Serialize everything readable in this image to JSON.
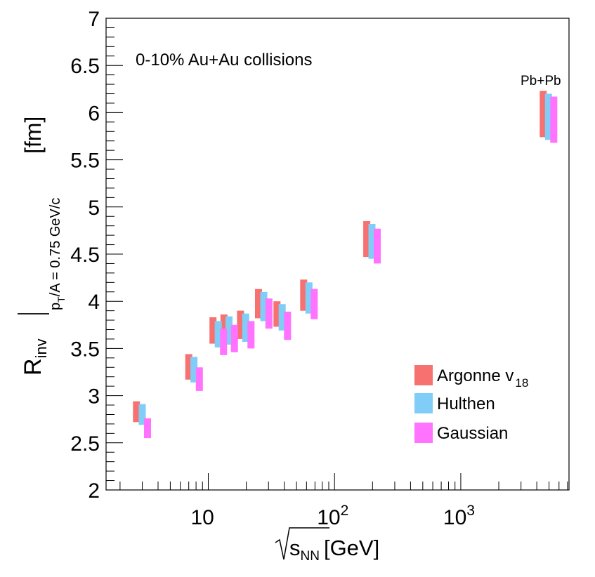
{
  "chart_data": {
    "type": "scatter",
    "annotation": "0-10% Au+Au collisions",
    "point_label": "Pb+Pb",
    "x_scale": "log",
    "xlim": [
      1.55,
      7200
    ],
    "ylim": [
      2,
      7
    ],
    "xlabel": {
      "sqrt": "s",
      "sub": "NN",
      "unit": "[GeV]"
    },
    "ylabel": {
      "main": "R",
      "sub": "inv",
      "cond": "p",
      "cond_sub": "T",
      "cond_rest": "/A = 0.75 GeV/c",
      "unit": "[fm]"
    },
    "x_ticks": [
      {
        "value": 10,
        "base": "10",
        "exp": ""
      },
      {
        "value": 100,
        "base": "10",
        "exp": "2"
      },
      {
        "value": 1000,
        "base": "10",
        "exp": "3"
      }
    ],
    "y_ticks": [
      {
        "value": 2,
        "label": "2"
      },
      {
        "value": 2.5,
        "label": "2.5"
      },
      {
        "value": 3,
        "label": "3"
      },
      {
        "value": 3.5,
        "label": "3.5"
      },
      {
        "value": 4,
        "label": "4"
      },
      {
        "value": 4.5,
        "label": "4.5"
      },
      {
        "value": 5,
        "label": "5"
      },
      {
        "value": 5.5,
        "label": "5.5"
      },
      {
        "value": 6,
        "label": "6"
      },
      {
        "value": 6.5,
        "label": "6.5"
      },
      {
        "value": 7,
        "label": "7"
      }
    ],
    "legend": {
      "position": "bottom-right",
      "entries": [
        {
          "label": "Argonne v",
          "sub": "18"
        },
        {
          "label": "Hulthen",
          "sub": ""
        },
        {
          "label": "Gaussian",
          "sub": ""
        }
      ]
    },
    "series": [
      {
        "name": "Argonne v18",
        "color": "#f87171",
        "bands": [
          {
            "x": 2.7,
            "low": 2.72,
            "high": 2.94
          },
          {
            "x": 7.0,
            "low": 3.17,
            "high": 3.44
          },
          {
            "x": 10.9,
            "low": 3.55,
            "high": 3.83
          },
          {
            "x": 13.3,
            "low": 3.58,
            "high": 3.86
          },
          {
            "x": 18.0,
            "low": 3.6,
            "high": 3.9
          },
          {
            "x": 25.0,
            "low": 3.82,
            "high": 4.13
          },
          {
            "x": 35.0,
            "low": 3.73,
            "high": 4.0
          },
          {
            "x": 57.0,
            "low": 3.9,
            "high": 4.23
          },
          {
            "x": 180.0,
            "low": 4.47,
            "high": 4.85
          },
          {
            "x": 4500.0,
            "low": 5.74,
            "high": 6.23
          }
        ]
      },
      {
        "name": "Hulthen",
        "color": "#80cef7",
        "bands": [
          {
            "x": 3.0,
            "low": 2.69,
            "high": 2.91
          },
          {
            "x": 7.7,
            "low": 3.14,
            "high": 3.41
          },
          {
            "x": 12.0,
            "low": 3.51,
            "high": 3.79
          },
          {
            "x": 14.6,
            "low": 3.54,
            "high": 3.84
          },
          {
            "x": 19.8,
            "low": 3.57,
            "high": 3.87
          },
          {
            "x": 27.5,
            "low": 3.79,
            "high": 4.1
          },
          {
            "x": 38.5,
            "low": 3.69,
            "high": 3.97
          },
          {
            "x": 62.7,
            "low": 3.87,
            "high": 4.2
          },
          {
            "x": 198.0,
            "low": 4.45,
            "high": 4.82
          },
          {
            "x": 4950.0,
            "low": 5.71,
            "high": 6.2
          }
        ]
      },
      {
        "name": "Gaussian",
        "color": "#ff73ff",
        "bands": [
          {
            "x": 3.3,
            "low": 2.55,
            "high": 2.76
          },
          {
            "x": 8.5,
            "low": 3.05,
            "high": 3.3
          },
          {
            "x": 13.2,
            "low": 3.43,
            "high": 3.71
          },
          {
            "x": 16.1,
            "low": 3.46,
            "high": 3.75
          },
          {
            "x": 21.8,
            "low": 3.5,
            "high": 3.79
          },
          {
            "x": 30.2,
            "low": 3.71,
            "high": 4.03
          },
          {
            "x": 42.4,
            "low": 3.59,
            "high": 3.89
          },
          {
            "x": 69.0,
            "low": 3.81,
            "high": 4.13
          },
          {
            "x": 218.0,
            "low": 4.4,
            "high": 4.77
          },
          {
            "x": 5450.0,
            "low": 5.68,
            "high": 6.17
          }
        ]
      }
    ]
  }
}
